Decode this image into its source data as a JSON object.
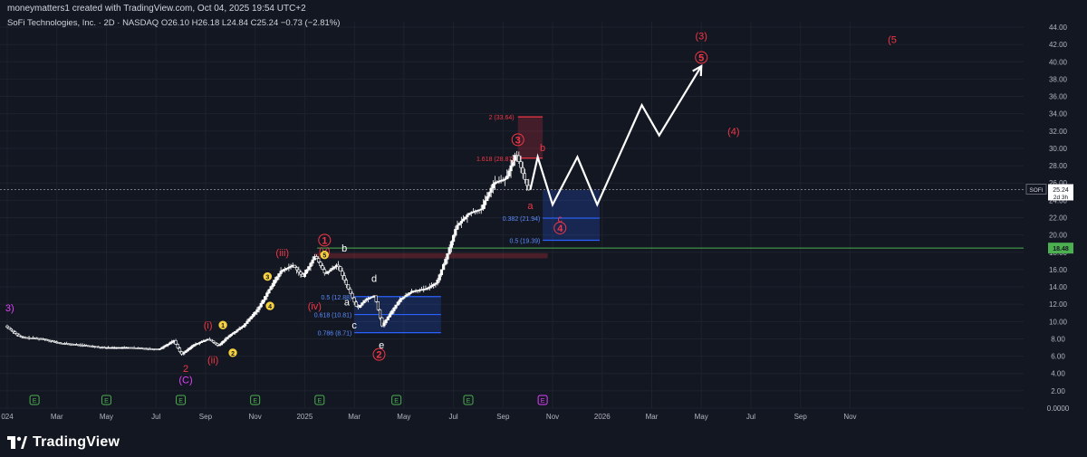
{
  "header": {
    "credit": "moneymatters1 created with TradingView.com, Oct 04, 2025 19:54 UTC+2",
    "symbol_line": "SoFi Technologies, Inc. · 2D · NASDAQ  O26.10  H26.18  L24.84  C25.24  −0.73 (−2.81%)"
  },
  "branding": {
    "logo_text": "TradingView"
  },
  "colors": {
    "background": "#131722",
    "up": "#ffffff",
    "red": "#f23645",
    "blue": "#2962ff",
    "green": "#4caf50",
    "yellow": "#f5d142",
    "purple": "#e040fb"
  },
  "chart_data": {
    "type": "candlestick",
    "symbol": "SOFI",
    "y_range": [
      0,
      44
    ],
    "y_ticks": [
      0,
      2,
      4,
      6,
      8,
      10,
      12,
      14,
      16,
      18,
      20,
      22,
      24,
      26,
      28,
      30,
      32,
      34,
      36,
      38,
      40,
      42,
      44
    ],
    "y_tick_labels": [
      "0.0000",
      "2.00",
      "4.00",
      "6.00",
      "8.00",
      "10.00",
      "12.00",
      "14.00",
      "16.00",
      "18.00",
      "20.00",
      "22.00",
      "24.00",
      "26.00",
      "28.00",
      "30.00",
      "32.00",
      "34.00",
      "36.00",
      "38.00",
      "40.00",
      "42.00",
      "44.00"
    ],
    "x_range": [
      0,
      41
    ],
    "x_ticks": [
      {
        "label": "024",
        "pos": 0
      },
      {
        "label": "Mar",
        "pos": 2
      },
      {
        "label": "May",
        "pos": 4
      },
      {
        "label": "Jul",
        "pos": 6
      },
      {
        "label": "Sep",
        "pos": 8
      },
      {
        "label": "Nov",
        "pos": 10
      },
      {
        "label": "2025",
        "pos": 12
      },
      {
        "label": "Mar",
        "pos": 14
      },
      {
        "label": "May",
        "pos": 16
      },
      {
        "label": "Jul",
        "pos": 18
      },
      {
        "label": "Sep",
        "pos": 20
      },
      {
        "label": "Nov",
        "pos": 22
      },
      {
        "label": "2026",
        "pos": 24
      },
      {
        "label": "Mar",
        "pos": 26
      },
      {
        "label": "May",
        "pos": 28
      },
      {
        "label": "Jul",
        "pos": 30
      },
      {
        "label": "Sep",
        "pos": 32
      },
      {
        "label": "Nov",
        "pos": 34
      }
    ],
    "price_path": [
      [
        0,
        9.5
      ],
      [
        0.6,
        8.2
      ],
      [
        1.5,
        8.0
      ],
      [
        2.2,
        7.5
      ],
      [
        3.0,
        7.3
      ],
      [
        4.0,
        7.0
      ],
      [
        5.0,
        7.0
      ],
      [
        6.2,
        6.8
      ],
      [
        6.8,
        7.8
      ],
      [
        7.1,
        6.2
      ],
      [
        7.6,
        7.3
      ],
      [
        8.2,
        8.0
      ],
      [
        8.6,
        7.2
      ],
      [
        9.0,
        8.3
      ],
      [
        9.6,
        9.5
      ],
      [
        10.2,
        11.5
      ],
      [
        10.6,
        13.5
      ],
      [
        11.1,
        15.8
      ],
      [
        11.6,
        16.5
      ],
      [
        12.0,
        15.2
      ],
      [
        12.5,
        17.6
      ],
      [
        12.9,
        15.5
      ],
      [
        13.4,
        16.6
      ],
      [
        13.8,
        14.0
      ],
      [
        14.2,
        11.5
      ],
      [
        14.5,
        12.5
      ],
      [
        14.9,
        13.0
      ],
      [
        15.2,
        9.5
      ],
      [
        15.5,
        10.8
      ],
      [
        15.9,
        12.5
      ],
      [
        16.4,
        13.5
      ],
      [
        17.0,
        13.8
      ],
      [
        17.4,
        14.5
      ],
      [
        17.8,
        17.5
      ],
      [
        18.2,
        21.0
      ],
      [
        18.7,
        22.5
      ],
      [
        19.2,
        23.0
      ],
      [
        19.7,
        26.0
      ],
      [
        20.2,
        26.5
      ],
      [
        20.6,
        29.5
      ],
      [
        21.1,
        25.2
      ]
    ],
    "last_price": "25.24",
    "last_price_countdown": "2d 3h",
    "horizontal_level": {
      "label": "18.48",
      "value": 18.48
    },
    "fib_labels": [
      {
        "text": "2 (33.64)",
        "value": 33.64
      },
      {
        "text": "1.618 (28.87)",
        "value": 28.87
      },
      {
        "text": "0.382 (21.94)",
        "value": 21.94
      },
      {
        "text": "0.5 (19.39)",
        "value": 19.39
      },
      {
        "text": "0.5 (12.88)",
        "value": 12.88
      },
      {
        "text": "0.618 (10.81)",
        "value": 10.81
      },
      {
        "text": "0.786 (8.71)",
        "value": 8.71
      }
    ],
    "projection_path": [
      [
        21.1,
        25.2
      ],
      [
        21.4,
        29.0
      ],
      [
        22.0,
        23.5
      ],
      [
        23.0,
        29.0
      ],
      [
        23.8,
        23.5
      ],
      [
        25.6,
        35.0
      ],
      [
        26.3,
        31.5
      ],
      [
        28.0,
        39.5
      ]
    ],
    "alt_path": [
      [
        21.1,
        25.2
      ],
      [
        21.4,
        29.0
      ],
      [
        22.0,
        23.5
      ]
    ],
    "wave_labels": [
      {
        "text": "(3)",
        "x": 28.0,
        "y": 43.0,
        "color": "#f23645",
        "circle": false
      },
      {
        "text": "5",
        "x": 28.0,
        "y": 40.5,
        "color": "#f23645",
        "circle": true
      },
      {
        "text": "(5",
        "x": 35.7,
        "y": 42.6,
        "color": "#f23645",
        "circle": false
      },
      {
        "text": "(4)",
        "x": 29.3,
        "y": 32.0,
        "color": "#f23645",
        "circle": false
      },
      {
        "text": "3",
        "x": 20.6,
        "y": 31.0,
        "color": "#f23645",
        "circle": true
      },
      {
        "text": "b",
        "x": 21.6,
        "y": 30.1,
        "color": "#f23645",
        "circle": false
      },
      {
        "text": "a",
        "x": 21.1,
        "y": 23.4,
        "color": "#f23645",
        "circle": false
      },
      {
        "text": "c",
        "x": 22.3,
        "y": 21.9,
        "color": "#f23645",
        "circle": false
      },
      {
        "text": "4",
        "x": 22.3,
        "y": 20.8,
        "color": "#f23645",
        "circle": true
      },
      {
        "text": "1",
        "x": 12.8,
        "y": 19.4,
        "color": "#f23645",
        "circle": true
      },
      {
        "text": "(v)",
        "x": 12.8,
        "y": 18.2,
        "color": "#f23645",
        "circle": false
      },
      {
        "text": "(iii)",
        "x": 11.1,
        "y": 18.0,
        "color": "#f23645",
        "circle": false
      },
      {
        "text": "(iv)",
        "x": 12.4,
        "y": 11.8,
        "color": "#f23645",
        "circle": false
      },
      {
        "text": "(i)",
        "x": 8.1,
        "y": 9.6,
        "color": "#f23645",
        "circle": false
      },
      {
        "text": "(ii)",
        "x": 8.3,
        "y": 5.6,
        "color": "#f23645",
        "circle": false
      },
      {
        "text": "2",
        "x": 7.2,
        "y": 4.6,
        "color": "#f23645",
        "circle": false
      },
      {
        "text": "(C)",
        "x": 7.2,
        "y": 3.3,
        "color": "#e040fb",
        "circle": false
      },
      {
        "text": "3)",
        "x": 0.1,
        "y": 11.6,
        "color": "#e040fb",
        "circle": false
      },
      {
        "text": "2",
        "x": 15.0,
        "y": 6.2,
        "color": "#f23645",
        "circle": true
      },
      {
        "text": "b",
        "x": 13.6,
        "y": 18.5,
        "color": "#ffffff",
        "circle": false
      },
      {
        "text": "d",
        "x": 14.8,
        "y": 15.0,
        "color": "#ffffff",
        "circle": false
      },
      {
        "text": "a",
        "x": 13.7,
        "y": 12.3,
        "color": "#ffffff",
        "circle": false
      },
      {
        "text": "c",
        "x": 14.0,
        "y": 9.6,
        "color": "#ffffff",
        "circle": false
      },
      {
        "text": "e",
        "x": 15.1,
        "y": 7.3,
        "color": "#ffffff",
        "circle": false
      },
      {
        "text": "5",
        "x": 12.8,
        "y": 17.7,
        "color": "#f5d142",
        "circle": true
      },
      {
        "text": "3",
        "x": 10.5,
        "y": 15.2,
        "color": "#f5d142",
        "circle": true
      },
      {
        "text": "4",
        "x": 10.6,
        "y": 11.8,
        "color": "#f5d142",
        "circle": true
      },
      {
        "text": "1",
        "x": 8.7,
        "y": 9.6,
        "color": "#f5d142",
        "circle": true
      },
      {
        "text": "2",
        "x": 9.1,
        "y": 6.4,
        "color": "#f5d142",
        "circle": true
      }
    ],
    "earnings_markers": [
      {
        "text": "E",
        "pos": 1.1,
        "color": "#4caf50"
      },
      {
        "text": "E",
        "pos": 4.0,
        "color": "#4caf50"
      },
      {
        "text": "E",
        "pos": 7.0,
        "color": "#4caf50"
      },
      {
        "text": "E",
        "pos": 10.0,
        "color": "#4caf50"
      },
      {
        "text": "E",
        "pos": 12.6,
        "color": "#4caf50"
      },
      {
        "text": "E",
        "pos": 15.7,
        "color": "#4caf50"
      },
      {
        "text": "E",
        "pos": 18.6,
        "color": "#4caf50"
      },
      {
        "text": "E",
        "pos": 21.6,
        "color": "#e040fb"
      }
    ]
  }
}
